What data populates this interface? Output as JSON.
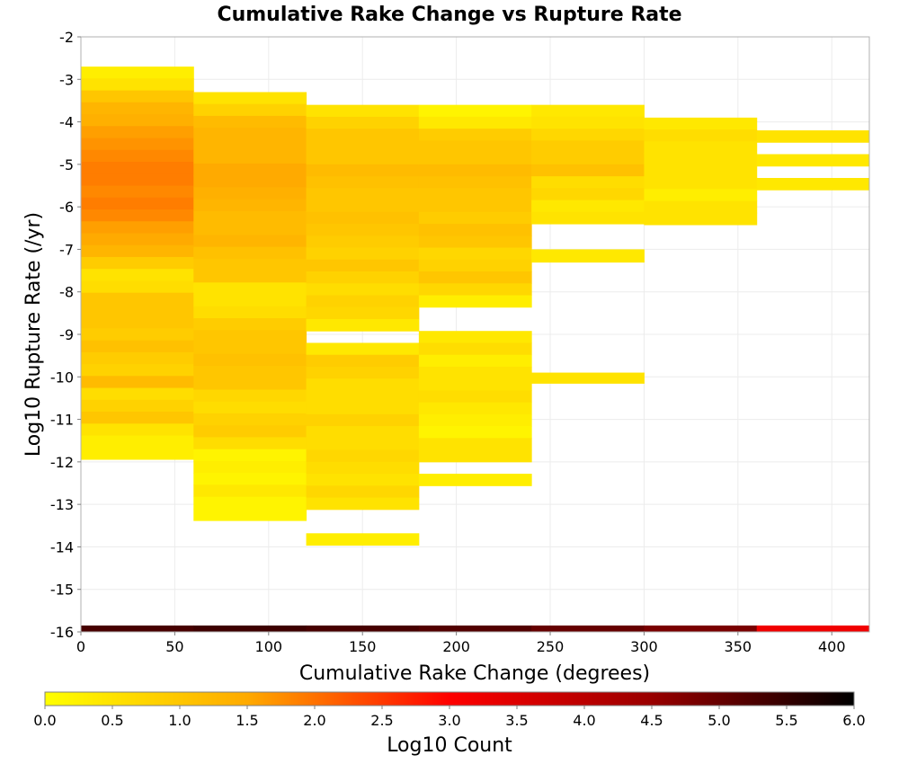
{
  "chart_data": {
    "type": "heatmap",
    "title": "Cumulative Rake Change vs Rupture Rate",
    "xlabel": "Cumulative Rake Change (degrees)",
    "ylabel": "Log10 Rupture Rate (/yr)",
    "xlim": [
      0,
      420
    ],
    "ylim": [
      -16,
      -2
    ],
    "x_ticks": [
      0,
      50,
      100,
      150,
      200,
      250,
      300,
      350,
      400
    ],
    "y_ticks": [
      -2,
      -3,
      -4,
      -5,
      -6,
      -7,
      -8,
      -9,
      -10,
      -11,
      -12,
      -13,
      -14,
      -15,
      -16
    ],
    "x_bin_width": 60,
    "y_bin_height": 0.28,
    "grid": true,
    "colorbar": {
      "label": "Log10 Count",
      "range": [
        0,
        6
      ],
      "ticks": [
        "0.0",
        "0.5",
        "1.0",
        "1.5",
        "2.0",
        "2.5",
        "3.0",
        "3.5",
        "4.0",
        "4.5",
        "5.0",
        "5.5",
        "6.0"
      ],
      "stops": [
        "#ffff00",
        "#ffaa00",
        "#ff0000",
        "#990000",
        "#000000"
      ]
    },
    "columns": [
      {
        "x0": 0,
        "y_top": -2.7,
        "values": [
          0.3,
          0.5,
          1.0,
          1.3,
          1.4,
          1.6,
          1.7,
          1.8,
          1.9,
          1.9,
          1.8,
          1.9,
          1.8,
          1.6,
          1.5,
          1.3,
          0.9,
          0.5,
          0.6,
          1.0,
          1.0,
          1.0,
          0.9,
          1.1,
          0.9,
          0.8,
          1.2,
          0.6,
          0.8,
          1.0,
          0.5,
          0.3,
          0.3
        ]
      },
      {
        "x0": 60,
        "y_top": -3.3,
        "values": [
          0.5,
          0.8,
          1.2,
          1.3,
          1.3,
          1.3,
          1.5,
          1.5,
          1.4,
          1.3,
          1.2,
          1.2,
          1.3,
          1.1,
          1.0,
          1.0,
          0.5,
          0.5,
          0.6,
          0.9,
          1.0,
          1.0,
          1.1,
          1.0,
          1.0,
          0.7,
          0.6,
          0.8,
          0.9,
          0.6,
          0.2,
          0.3,
          0.2,
          0.4,
          0.2,
          0.2
        ]
      },
      {
        "x0": 120,
        "y_top": -3.6,
        "values": [
          0.5,
          0.8,
          1.0,
          1.0,
          1.0,
          1.2,
          1.1,
          1.0,
          1.0,
          1.1,
          1.0,
          0.9,
          0.8,
          1.0,
          0.8,
          0.6,
          0.8,
          0.7,
          0.4,
          null,
          0.4,
          0.9,
          0.8,
          0.6,
          0.6,
          0.6,
          0.8,
          0.6,
          0.6,
          0.7,
          0.6,
          0.5,
          0.7,
          0.5,
          null,
          null,
          0.3
        ]
      },
      {
        "x0": 180,
        "y_top": -3.6,
        "values": [
          0.2,
          0.4,
          0.9,
          1.0,
          1.0,
          1.2,
          1.1,
          1.0,
          1.0,
          0.9,
          1.1,
          1.0,
          0.7,
          0.8,
          1.0,
          0.7,
          0.3,
          null,
          null,
          0.4,
          0.6,
          0.3,
          0.5,
          0.5,
          0.6,
          0.4,
          0.3,
          0.2,
          0.5,
          0.5,
          null,
          0.3
        ]
      },
      {
        "x0": 240,
        "y_top": -3.6,
        "values": [
          0.4,
          0.5,
          0.7,
          0.9,
          0.9,
          1.1,
          0.6,
          0.7,
          0.4,
          0.5
        ]
      },
      {
        "x0": 300,
        "y_top": -3.9,
        "values": [
          0.4,
          0.6,
          0.5,
          0.5,
          0.5,
          0.5,
          0.3,
          0.5,
          0.5
        ]
      },
      {
        "x0": 360,
        "y_top": -4.2,
        "values": [
          0.5,
          null,
          0.4,
          null,
          0.4
        ]
      }
    ],
    "extra_cells": [
      {
        "x0": 240,
        "y0": -7.0,
        "y1": -7.3,
        "value": 0.4
      },
      {
        "x0": 240,
        "y0": -9.9,
        "y1": -10.15,
        "value": 0.5
      }
    ],
    "bottom_row": {
      "y0": -15.85,
      "y1": -16.0,
      "cells": [
        {
          "x0": 0,
          "value": 5.3
        },
        {
          "x0": 60,
          "value": 5.4
        },
        {
          "x0": 120,
          "value": 5.3
        },
        {
          "x0": 180,
          "value": 5.2
        },
        {
          "x0": 240,
          "value": 5.0
        },
        {
          "x0": 300,
          "value": 4.8
        },
        {
          "x0": 360,
          "value": 3.2
        }
      ]
    }
  }
}
